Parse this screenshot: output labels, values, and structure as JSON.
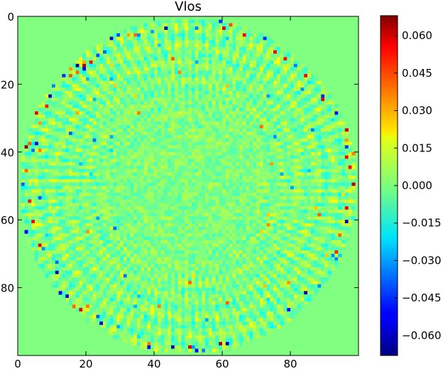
{
  "chart_data": {
    "type": "heatmap",
    "title": "Vlos",
    "xlabel": "",
    "ylabel": "",
    "x_ticks": [
      "0",
      "20",
      "40",
      "60",
      "80"
    ],
    "x_tick_values": [
      0,
      20,
      40,
      60,
      80
    ],
    "y_ticks": [
      "0",
      "20",
      "40",
      "60",
      "80"
    ],
    "y_tick_values": [
      0,
      20,
      40,
      60,
      80
    ],
    "xlim": [
      0,
      99
    ],
    "ylim": [
      99,
      0
    ],
    "grid_size": 100,
    "disk": {
      "center": [
        49.5,
        49.5
      ],
      "radius": 49.5,
      "outside_value": 0.0
    },
    "colorbar": {
      "colormap": "jet",
      "range": [
        -0.068,
        0.068
      ],
      "ticks": [
        "0.060",
        "0.045",
        "0.030",
        "0.015",
        "0.000",
        "−0.015",
        "−0.030",
        "−0.045",
        "−0.060"
      ],
      "tick_values": [
        0.06,
        0.045,
        0.03,
        0.015,
        0.0,
        -0.015,
        -0.03,
        -0.045,
        -0.06
      ]
    },
    "grid": false
  }
}
